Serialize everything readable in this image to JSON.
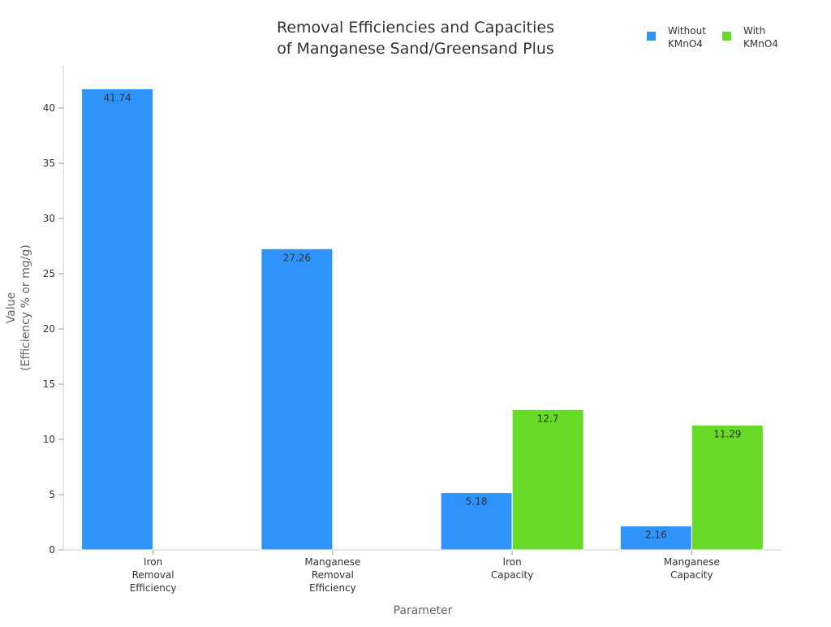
{
  "chart_data": {
    "type": "bar",
    "title_lines": [
      "Removal Efficiencies and Capacities",
      "of Manganese Sand/Greensand Plus"
    ],
    "xlabel": "Parameter",
    "ylabel_lines": [
      "Value",
      "(Efficiency % or mg/g)"
    ],
    "categories": [
      [
        "Iron",
        "Removal",
        "Efficiency"
      ],
      [
        "Manganese",
        "Removal",
        "Efficiency"
      ],
      [
        "Iron",
        "Capacity"
      ],
      [
        "Manganese",
        "Capacity"
      ]
    ],
    "series": [
      {
        "name_lines": [
          "Without",
          "KMnO4"
        ],
        "color": "#2e93fa",
        "values": [
          41.74,
          27.26,
          5.18,
          2.16
        ]
      },
      {
        "name_lines": [
          "With",
          "KMnO4"
        ],
        "color": "#66da26",
        "values": [
          null,
          null,
          12.7,
          11.29
        ]
      }
    ],
    "ylim": [
      0,
      44
    ],
    "yticks": [
      0,
      5,
      10,
      15,
      20,
      25,
      30,
      35,
      40
    ],
    "grid": false,
    "legend": "top-right"
  }
}
